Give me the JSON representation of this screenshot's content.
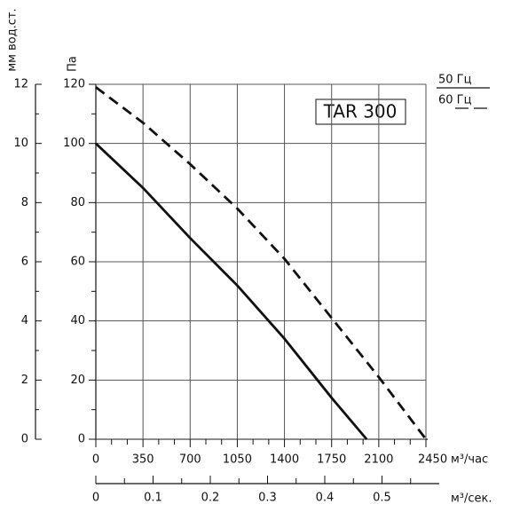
{
  "chart_data": {
    "type": "line",
    "title": "TAR 300",
    "y_label": "Па",
    "y2_label": "мм вод.ст.",
    "x_label": "м³/час",
    "x2_label": "м³/сек.",
    "xlim": [
      0,
      2450
    ],
    "xticks": [
      0,
      350,
      700,
      1050,
      1400,
      1750,
      2100,
      2450
    ],
    "x2lim": [
      0,
      0.6
    ],
    "x2ticks": [
      0,
      0.1,
      0.2,
      0.3,
      0.4,
      0.5
    ],
    "ylim": [
      0,
      120
    ],
    "yticks": [
      0,
      20,
      40,
      60,
      80,
      100,
      120
    ],
    "y2lim": [
      0,
      12
    ],
    "y2ticks": [
      0,
      2,
      4,
      6,
      8,
      10,
      12
    ],
    "grid": true,
    "series": [
      {
        "name": "50 Гц",
        "color": "#111111",
        "dashed": false,
        "x": [
          0,
          350,
          700,
          1050,
          1400,
          1750,
          2010
        ],
        "values": [
          100,
          85,
          68,
          52,
          34,
          14,
          0
        ]
      },
      {
        "name": "60 Гц",
        "color": "#111111",
        "dashed": true,
        "x": [
          0,
          350,
          700,
          1050,
          1400,
          1750,
          2100,
          2450
        ],
        "values": [
          119,
          107,
          93,
          78,
          61,
          41,
          21,
          0
        ]
      }
    ]
  }
}
